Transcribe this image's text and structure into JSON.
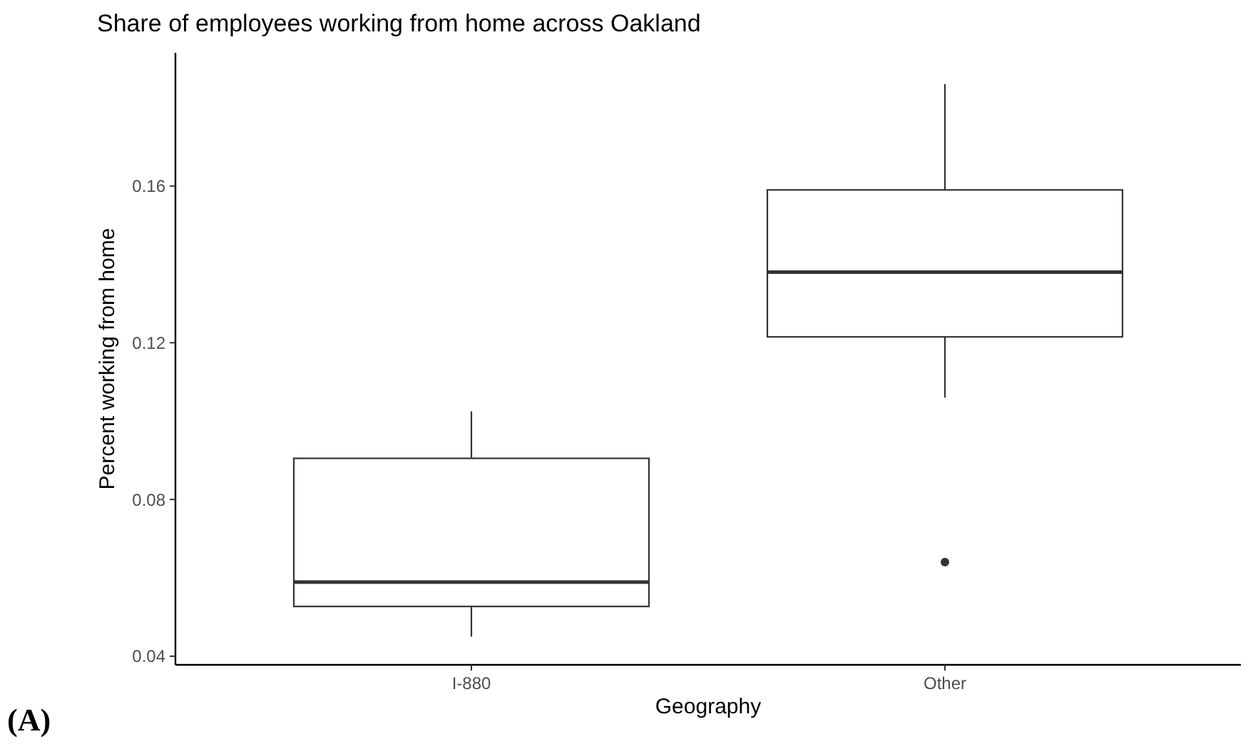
{
  "chart_data": {
    "type": "box",
    "title": "Share of employees working from home across Oakland",
    "xlabel": "Geography",
    "ylabel": "Percent working from home",
    "categories": [
      "I-880",
      "Other"
    ],
    "boxes": [
      {
        "low": 0.045,
        "q1": 0.0527,
        "median": 0.0589,
        "q3": 0.0905,
        "high": 0.1025
      },
      {
        "low": 0.106,
        "q1": 0.1215,
        "median": 0.138,
        "q3": 0.159,
        "high": 0.186,
        "outliers": [
          0.064
        ]
      }
    ],
    "ylim": [
      0.0378,
      0.194
    ],
    "yticks": [
      {
        "value": 0.04,
        "label": "0.04"
      },
      {
        "value": 0.08,
        "label": "0.08"
      },
      {
        "value": 0.12,
        "label": "0.12"
      },
      {
        "value": 0.16,
        "label": "0.16"
      }
    ],
    "grid": false,
    "annotations": [
      "(A)"
    ]
  }
}
